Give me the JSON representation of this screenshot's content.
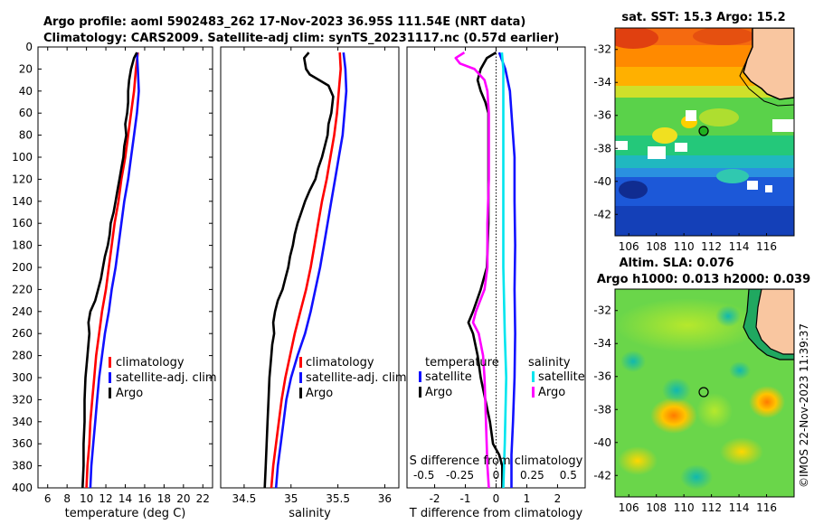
{
  "title": {
    "line1": "Argo profile: aoml 5902483_262 17-Nov-2023 36.95S 111.54E (NRT data)",
    "line2": "Climatology: CARS2009. Satellite-adj clim: synTS_20231117.nc (0.57d earlier)"
  },
  "colors": {
    "climatology": "#ff0000",
    "satellite": "#1010ff",
    "argo": "#000000",
    "sat_salinity": "#00e5ee",
    "argo_salinity": "#ff00ff",
    "land": "#f9c6a0"
  },
  "chart_data": [
    {
      "id": "temperature",
      "type": "line",
      "xlabel": "temperature (deg C)",
      "ylabel": "",
      "xlim": [
        5,
        23
      ],
      "ylim": [
        400,
        0
      ],
      "xticks": [
        6,
        8,
        10,
        12,
        14,
        16,
        18,
        20,
        22
      ],
      "yticks": [
        0,
        20,
        40,
        60,
        80,
        100,
        120,
        140,
        160,
        180,
        200,
        220,
        240,
        260,
        280,
        300,
        320,
        340,
        360,
        380,
        400
      ],
      "legend": [
        "climatology",
        "satellite-adj. clim",
        "Argo"
      ],
      "series": [
        {
          "name": "climatology",
          "color": "#ff0000",
          "points": [
            [
              15.3,
              5
            ],
            [
              15.1,
              20
            ],
            [
              14.9,
              40
            ],
            [
              14.6,
              60
            ],
            [
              14.3,
              80
            ],
            [
              14.0,
              100
            ],
            [
              13.6,
              120
            ],
            [
              13.3,
              140
            ],
            [
              12.9,
              160
            ],
            [
              12.6,
              180
            ],
            [
              12.3,
              200
            ],
            [
              12.0,
              220
            ],
            [
              11.6,
              240
            ],
            [
              11.3,
              260
            ],
            [
              11.0,
              280
            ],
            [
              10.8,
              300
            ],
            [
              10.6,
              320
            ],
            [
              10.4,
              340
            ],
            [
              10.3,
              360
            ],
            [
              10.1,
              380
            ],
            [
              10.0,
              400
            ]
          ]
        },
        {
          "name": "satellite-adj. clim",
          "color": "#1010ff",
          "points": [
            [
              15.2,
              5
            ],
            [
              15.3,
              20
            ],
            [
              15.4,
              40
            ],
            [
              15.2,
              60
            ],
            [
              14.9,
              80
            ],
            [
              14.6,
              100
            ],
            [
              14.3,
              120
            ],
            [
              13.9,
              140
            ],
            [
              13.6,
              160
            ],
            [
              13.3,
              180
            ],
            [
              13.0,
              200
            ],
            [
              12.6,
              220
            ],
            [
              12.3,
              240
            ],
            [
              11.9,
              260
            ],
            [
              11.6,
              280
            ],
            [
              11.3,
              300
            ],
            [
              11.1,
              320
            ],
            [
              10.9,
              340
            ],
            [
              10.7,
              360
            ],
            [
              10.5,
              380
            ],
            [
              10.4,
              400
            ]
          ]
        },
        {
          "name": "Argo",
          "color": "#000000",
          "points": [
            [
              15.2,
              5
            ],
            [
              14.9,
              10
            ],
            [
              14.6,
              20
            ],
            [
              14.4,
              30
            ],
            [
              14.3,
              40
            ],
            [
              14.3,
              50
            ],
            [
              14.2,
              60
            ],
            [
              14.0,
              70
            ],
            [
              14.1,
              80
            ],
            [
              13.9,
              90
            ],
            [
              13.8,
              100
            ],
            [
              13.6,
              110
            ],
            [
              13.4,
              120
            ],
            [
              13.2,
              130
            ],
            [
              13.0,
              140
            ],
            [
              12.8,
              150
            ],
            [
              12.5,
              160
            ],
            [
              12.4,
              170
            ],
            [
              12.2,
              180
            ],
            [
              11.9,
              190
            ],
            [
              11.7,
              200
            ],
            [
              11.5,
              210
            ],
            [
              11.2,
              220
            ],
            [
              10.9,
              230
            ],
            [
              10.4,
              240
            ],
            [
              10.2,
              250
            ],
            [
              10.3,
              260
            ],
            [
              10.1,
              280
            ],
            [
              9.9,
              300
            ],
            [
              9.8,
              320
            ],
            [
              9.8,
              340
            ],
            [
              9.7,
              360
            ],
            [
              9.7,
              380
            ],
            [
              9.6,
              400
            ]
          ]
        }
      ]
    },
    {
      "id": "salinity",
      "type": "line",
      "xlabel": "salinity",
      "xlim": [
        34.25,
        36.15
      ],
      "ylim": [
        400,
        0
      ],
      "xticks": [
        34.5,
        35,
        35.5,
        36
      ],
      "xticklabels": [
        "34.5",
        "35",
        "35.5",
        "36"
      ],
      "legend": [
        "climatology",
        "satellite-adj. clim",
        "Argo"
      ],
      "series": [
        {
          "name": "climatology",
          "color": "#ff0000",
          "points": [
            [
              35.52,
              5
            ],
            [
              35.53,
              20
            ],
            [
              35.51,
              40
            ],
            [
              35.49,
              60
            ],
            [
              35.46,
              80
            ],
            [
              35.42,
              100
            ],
            [
              35.38,
              120
            ],
            [
              35.33,
              140
            ],
            [
              35.29,
              160
            ],
            [
              35.25,
              180
            ],
            [
              35.21,
              200
            ],
            [
              35.16,
              220
            ],
            [
              35.1,
              240
            ],
            [
              35.04,
              260
            ],
            [
              34.99,
              280
            ],
            [
              34.94,
              300
            ],
            [
              34.9,
              320
            ],
            [
              34.87,
              340
            ],
            [
              34.84,
              360
            ],
            [
              34.81,
              380
            ],
            [
              34.79,
              400
            ]
          ]
        },
        {
          "name": "satellite-adj. clim",
          "color": "#1010ff",
          "points": [
            [
              35.56,
              5
            ],
            [
              35.58,
              20
            ],
            [
              35.59,
              40
            ],
            [
              35.57,
              60
            ],
            [
              35.55,
              80
            ],
            [
              35.51,
              100
            ],
            [
              35.47,
              120
            ],
            [
              35.43,
              140
            ],
            [
              35.39,
              160
            ],
            [
              35.35,
              180
            ],
            [
              35.31,
              200
            ],
            [
              35.26,
              220
            ],
            [
              35.21,
              240
            ],
            [
              35.15,
              260
            ],
            [
              35.07,
              280
            ],
            [
              35.0,
              300
            ],
            [
              34.95,
              320
            ],
            [
              34.92,
              340
            ],
            [
              34.89,
              360
            ],
            [
              34.86,
              380
            ],
            [
              34.84,
              400
            ]
          ]
        },
        {
          "name": "Argo",
          "color": "#000000",
          "points": [
            [
              35.19,
              5
            ],
            [
              35.14,
              10
            ],
            [
              35.16,
              20
            ],
            [
              35.2,
              25
            ],
            [
              35.3,
              30
            ],
            [
              35.4,
              35
            ],
            [
              35.45,
              45
            ],
            [
              35.43,
              60
            ],
            [
              35.4,
              70
            ],
            [
              35.39,
              80
            ],
            [
              35.36,
              90
            ],
            [
              35.33,
              100
            ],
            [
              35.29,
              110
            ],
            [
              35.26,
              120
            ],
            [
              35.2,
              130
            ],
            [
              35.15,
              140
            ],
            [
              35.11,
              150
            ],
            [
              35.07,
              160
            ],
            [
              35.04,
              170
            ],
            [
              35.02,
              180
            ],
            [
              34.99,
              190
            ],
            [
              34.97,
              200
            ],
            [
              34.94,
              210
            ],
            [
              34.91,
              220
            ],
            [
              34.86,
              230
            ],
            [
              34.83,
              240
            ],
            [
              34.81,
              250
            ],
            [
              34.82,
              260
            ],
            [
              34.8,
              270
            ],
            [
              34.79,
              280
            ],
            [
              34.77,
              300
            ],
            [
              34.76,
              320
            ],
            [
              34.75,
              340
            ],
            [
              34.74,
              360
            ],
            [
              34.73,
              380
            ],
            [
              34.72,
              400
            ]
          ]
        }
      ]
    },
    {
      "id": "difference",
      "type": "line",
      "xlabel": "T difference from climatology",
      "top_xlabel": "S difference from climatology",
      "xlim": [
        -2.9,
        2.9
      ],
      "ylim": [
        400,
        0
      ],
      "xticks": [
        -2,
        -1,
        0,
        1,
        2
      ],
      "top_xticks": [
        -0.5,
        -0.25,
        0,
        0.25,
        0.5
      ],
      "top_xticklabels": [
        "-0.5",
        "-0.25",
        "0",
        "0.25",
        "0.5"
      ],
      "legend_temperature_title": "temperature",
      "legend_salinity_title": "salinity",
      "legend": [
        "satellite",
        "Argo",
        "satellite",
        "Argo"
      ],
      "series": [
        {
          "name": "T satellite",
          "color": "#1010ff",
          "points": [
            [
              0.1,
              5
            ],
            [
              0.3,
              20
            ],
            [
              0.45,
              40
            ],
            [
              0.5,
              60
            ],
            [
              0.55,
              80
            ],
            [
              0.6,
              100
            ],
            [
              0.6,
              140
            ],
            [
              0.62,
              180
            ],
            [
              0.6,
              220
            ],
            [
              0.62,
              260
            ],
            [
              0.6,
              300
            ],
            [
              0.55,
              340
            ],
            [
              0.5,
              370
            ],
            [
              0.5,
              400
            ]
          ]
        },
        {
          "name": "T Argo",
          "color": "#000000",
          "points": [
            [
              0.0,
              5
            ],
            [
              -0.3,
              10
            ],
            [
              -0.5,
              20
            ],
            [
              -0.6,
              30
            ],
            [
              -0.5,
              40
            ],
            [
              -0.35,
              50
            ],
            [
              -0.25,
              60
            ],
            [
              -0.25,
              80
            ],
            [
              -0.25,
              120
            ],
            [
              -0.25,
              160
            ],
            [
              -0.3,
              200
            ],
            [
              -0.5,
              220
            ],
            [
              -0.75,
              240
            ],
            [
              -0.9,
              250
            ],
            [
              -0.75,
              260
            ],
            [
              -0.6,
              280
            ],
            [
              -0.5,
              300
            ],
            [
              -0.35,
              320
            ],
            [
              -0.2,
              340
            ],
            [
              -0.1,
              360
            ],
            [
              0.1,
              370
            ],
            [
              0.2,
              380
            ],
            [
              0.2,
              400
            ]
          ]
        },
        {
          "name": "S satellite",
          "color": "#00e5ee",
          "points": [
            [
              0.04,
              5
            ],
            [
              0.05,
              20
            ],
            [
              0.05,
              40
            ],
            [
              0.05,
              80
            ],
            [
              0.05,
              120
            ],
            [
              0.05,
              200
            ],
            [
              0.06,
              260
            ],
            [
              0.07,
              300
            ],
            [
              0.06,
              360
            ],
            [
              0.05,
              400
            ]
          ]
        },
        {
          "name": "S Argo",
          "color": "#ff00ff",
          "points": [
            [
              -0.22,
              5
            ],
            [
              -0.28,
              10
            ],
            [
              -0.25,
              15
            ],
            [
              -0.15,
              20
            ],
            [
              -0.08,
              30
            ],
            [
              -0.06,
              40
            ],
            [
              -0.05,
              60
            ],
            [
              -0.05,
              80
            ],
            [
              -0.05,
              120
            ],
            [
              -0.06,
              160
            ],
            [
              -0.06,
              200
            ],
            [
              -0.08,
              220
            ],
            [
              -0.14,
              240
            ],
            [
              -0.16,
              250
            ],
            [
              -0.12,
              260
            ],
            [
              -0.09,
              280
            ],
            [
              -0.08,
              300
            ],
            [
              -0.07,
              340
            ],
            [
              -0.06,
              380
            ],
            [
              -0.05,
              400
            ]
          ]
        }
      ]
    },
    {
      "id": "sst_map",
      "type": "heatmap",
      "title": "sat. SST: 15.3 Argo: 15.2",
      "xticks": [
        106,
        108,
        110,
        112,
        114,
        116
      ],
      "yticks": [
        -32,
        -34,
        -36,
        -38,
        -40,
        -42
      ],
      "xlim": [
        105,
        118
      ],
      "ylim": [
        -43.3,
        -30.7
      ],
      "argo_position": [
        111.54,
        -36.95
      ]
    },
    {
      "id": "sla_map",
      "type": "heatmap",
      "title": "Altim. SLA: 0.076",
      "subtitle": "Argo h1000: 0.013 h2000: 0.039",
      "xticks": [
        106,
        108,
        110,
        112,
        114,
        116
      ],
      "yticks": [
        -32,
        -34,
        -36,
        -38,
        -40,
        -42
      ],
      "xlim": [
        105,
        118
      ],
      "ylim": [
        -43.3,
        -30.7
      ],
      "argo_position": [
        111.54,
        -36.95
      ]
    }
  ],
  "footer": "©IMOS 22-Nov-2023 11:39:37"
}
